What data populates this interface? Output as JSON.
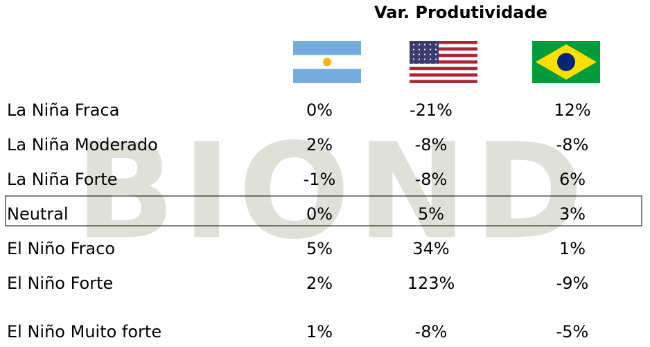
{
  "header": {
    "title": "Var. Produtividade"
  },
  "watermark": "BIOND",
  "table": {
    "rows": [
      [
        "La Niña Fraca",
        "0%",
        "-21%",
        "12%"
      ],
      [
        "La Niña Moderado",
        "2%",
        "-8%",
        "-8%"
      ],
      [
        "La Niña Forte",
        "-1%",
        "-8%",
        "6%"
      ],
      [
        "Neutral",
        "0%",
        "5%",
        "3%"
      ],
      [
        "El Niño Fraco",
        "5%",
        "34%",
        "1%"
      ],
      [
        "El Niño Forte",
        "2%",
        "123%",
        "-9%"
      ],
      [
        "El Niño Muito forte",
        "1%",
        "-8%",
        "-5%"
      ]
    ]
  }
}
